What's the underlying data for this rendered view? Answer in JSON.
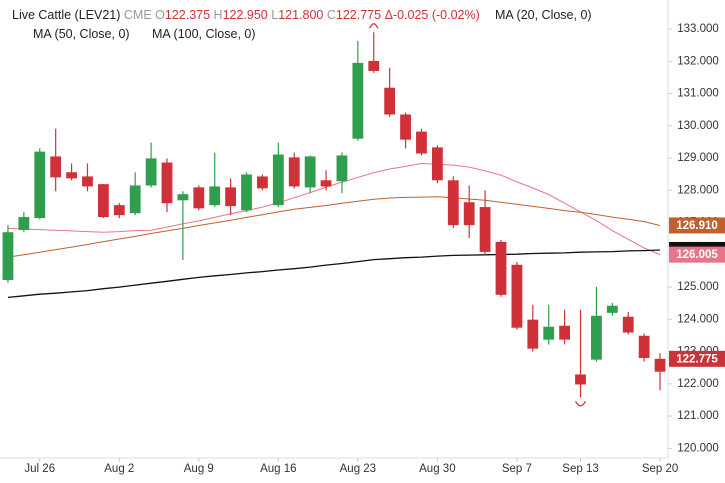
{
  "header": {
    "title": "Live Cattle (LEV21)",
    "exchange": "CME",
    "fields": [
      {
        "key": "O",
        "value": "122.375"
      },
      {
        "key": "H",
        "value": "122.950"
      },
      {
        "key": "L",
        "value": "121.800"
      },
      {
        "key": "C",
        "value": "122.775"
      }
    ],
    "change": "Δ-0.025 (-0.02%)"
  },
  "chart_data": {
    "type": "candlestick",
    "categories": [
      null,
      null,
      "Jul 26",
      null,
      null,
      null,
      null,
      "Aug 2",
      null,
      null,
      null,
      null,
      "Aug 9",
      null,
      null,
      null,
      null,
      "Aug 16",
      null,
      null,
      null,
      null,
      "Aug 23",
      null,
      null,
      null,
      null,
      "Aug 30",
      null,
      null,
      null,
      null,
      "Sep 7",
      null,
      null,
      null,
      "Sep 13",
      null,
      null,
      null,
      null,
      "Sep 20"
    ],
    "open": [
      125.22,
      126.77,
      127.14,
      129.05,
      128.56,
      128.43,
      128.19,
      127.54,
      127.29,
      128.15,
      128.86,
      127.69,
      128.09,
      127.54,
      128.09,
      127.38,
      128.43,
      127.54,
      129.02,
      128.09,
      128.31,
      128.28,
      129.6,
      132.01,
      131.18,
      130.35,
      129.82,
      129.33,
      128.31,
      127.63,
      127.48,
      126.4,
      125.69,
      123.99,
      123.37,
      123.8,
      122.29,
      122.75,
      124.2,
      124.08,
      123.49,
      122.375
    ],
    "high": [
      126.92,
      127.32,
      129.3,
      129.91,
      128.83,
      128.83,
      128.2,
      127.6,
      128.56,
      129.48,
      128.99,
      127.97,
      128.15,
      129.17,
      128.37,
      128.56,
      128.49,
      129.48,
      129.17,
      129.08,
      128.62,
      129.17,
      132.63,
      132.9,
      131.8,
      130.41,
      129.91,
      129.39,
      128.43,
      128.15,
      128.0,
      126.46,
      125.78,
      124.45,
      124.45,
      124.3,
      124.3,
      125.01,
      124.51,
      124.23,
      123.56,
      122.95
    ],
    "low": [
      125.13,
      126.7,
      127.1,
      127.97,
      128.31,
      127.97,
      127.14,
      127.14,
      127.23,
      128.09,
      127.32,
      125.84,
      127.38,
      127.48,
      127.23,
      127.32,
      128.0,
      127.48,
      128.06,
      127.91,
      128.0,
      127.91,
      129.54,
      131.64,
      130.28,
      129.3,
      129.08,
      128.22,
      126.83,
      126.52,
      125.99,
      124.7,
      123.68,
      123.0,
      123.22,
      123.22,
      121.58,
      122.69,
      124.11,
      123.53,
      122.69,
      121.8
    ],
    "close": [
      126.7,
      127.17,
      129.2,
      128.4,
      128.37,
      128.12,
      127.17,
      127.23,
      128.15,
      128.99,
      127.6,
      127.88,
      127.44,
      128.12,
      127.51,
      128.49,
      128.06,
      129.11,
      128.12,
      129.05,
      128.12,
      129.08,
      131.95,
      131.7,
      130.35,
      129.57,
      129.14,
      128.31,
      126.92,
      126.92,
      126.09,
      124.76,
      123.74,
      123.09,
      123.77,
      123.37,
      121.98,
      124.11,
      124.42,
      123.59,
      122.8,
      122.775
    ],
    "close_labels": [
      null,
      null,
      null,
      null,
      null,
      null,
      null,
      null,
      null,
      null,
      null,
      null,
      null,
      null,
      null,
      null,
      null,
      null,
      null,
      null,
      null,
      null,
      null,
      null,
      null,
      null,
      null,
      null,
      null,
      null,
      null,
      null,
      null,
      null,
      null,
      null,
      null,
      null,
      null,
      null,
      null,
      "122.775"
    ],
    "colors": [
      "#2f9e4f",
      "#2f9e4f",
      "#2f9e4f",
      "#d03138",
      "#d03138",
      "#d03138",
      "#d03138",
      "#d03138",
      "#2f9e4f",
      "#2f9e4f",
      "#d03138",
      "#2f9e4f",
      "#d03138",
      "#2f9e4f",
      "#d03138",
      "#2f9e4f",
      "#d03138",
      "#2f9e4f",
      "#d03138",
      "#2f9e4f",
      "#d03138",
      "#2f9e4f",
      "#2f9e4f",
      "#d03138",
      "#d03138",
      "#d03138",
      "#d03138",
      "#d03138",
      "#d03138",
      "#d03138",
      "#d03138",
      "#d03138",
      "#d03138",
      "#d03138",
      "#2f9e4f",
      "#d03138",
      "#d03138",
      "#2f9e4f",
      "#2f9e4f",
      "#d03138",
      "#d03138",
      "#d03138"
    ],
    "label_color": "#c9343a",
    "marker_color": "#d03138",
    "series": [
      {
        "name": "MA (20, Close, 0)",
        "color": "#e8768a",
        "values": [
          126.82,
          126.8,
          126.78,
          126.76,
          126.74,
          126.72,
          126.7,
          126.72,
          126.75,
          126.76,
          126.86,
          126.96,
          127.05,
          127.16,
          127.27,
          127.37,
          127.48,
          127.61,
          127.77,
          127.93,
          128.1,
          128.25,
          128.4,
          128.55,
          128.66,
          128.74,
          128.83,
          128.81,
          128.78,
          128.72,
          128.6,
          128.47,
          128.26,
          128.07,
          127.87,
          127.6,
          127.33,
          127.06,
          126.75,
          126.48,
          126.21,
          126.005
        ],
        "value_labels": [
          null,
          null,
          null,
          null,
          null,
          null,
          null,
          null,
          null,
          null,
          null,
          null,
          null,
          null,
          null,
          null,
          null,
          null,
          null,
          null,
          null,
          null,
          null,
          null,
          null,
          null,
          null,
          null,
          null,
          null,
          null,
          null,
          null,
          null,
          null,
          null,
          null,
          null,
          null,
          null,
          null,
          "126.005"
        ]
      },
      {
        "name": "MA (50, Close, 0)",
        "color": "#c0602e",
        "values": [
          125.93,
          126.0,
          126.08,
          126.16,
          126.24,
          126.32,
          126.41,
          126.49,
          126.57,
          126.66,
          126.74,
          126.82,
          126.91,
          126.99,
          127.07,
          127.16,
          127.24,
          127.33,
          127.41,
          127.47,
          127.53,
          127.6,
          127.66,
          127.72,
          127.76,
          127.78,
          127.79,
          127.8,
          127.77,
          127.73,
          127.69,
          127.63,
          127.57,
          127.5,
          127.44,
          127.37,
          127.32,
          127.25,
          127.17,
          127.1,
          127.03,
          126.91
        ],
        "value_labels": [
          null,
          null,
          null,
          null,
          null,
          null,
          null,
          null,
          null,
          null,
          null,
          null,
          null,
          null,
          null,
          null,
          null,
          null,
          null,
          null,
          null,
          null,
          null,
          null,
          null,
          null,
          null,
          null,
          null,
          null,
          null,
          null,
          null,
          null,
          null,
          null,
          null,
          null,
          null,
          null,
          null,
          "126.910"
        ]
      },
      {
        "name": "MA (100, Close, 0)",
        "color": "#111111",
        "values": [
          124.68,
          124.73,
          124.78,
          124.81,
          124.85,
          124.89,
          124.95,
          125.0,
          125.06,
          125.12,
          125.18,
          125.24,
          125.3,
          125.35,
          125.39,
          125.44,
          125.48,
          125.53,
          125.57,
          125.62,
          125.68,
          125.73,
          125.79,
          125.85,
          125.88,
          125.91,
          125.93,
          125.96,
          125.98,
          125.99,
          126.0,
          126.01,
          126.02,
          126.04,
          126.05,
          126.06,
          126.08,
          126.09,
          126.1,
          126.12,
          126.13,
          126.15
        ]
      }
    ],
    "ylim": [
      119.7,
      133.9
    ],
    "yticks": [
      {
        "value": 120,
        "label": "120.000"
      },
      {
        "value": 121,
        "label": "121.000"
      },
      {
        "value": 122,
        "label": "122.000"
      },
      {
        "value": 123,
        "label": "123.000"
      },
      {
        "value": 124,
        "label": "124.000"
      },
      {
        "value": 125,
        "label": "125.000"
      },
      {
        "value": 126,
        "label": "126.000"
      },
      {
        "value": 127,
        "label": "127.000"
      },
      {
        "value": 128,
        "label": "128.000"
      },
      {
        "value": 129,
        "label": "129.000"
      },
      {
        "value": 130,
        "label": "130.000"
      },
      {
        "value": 131,
        "label": "131.000"
      },
      {
        "value": 132,
        "label": "132.000"
      },
      {
        "value": 133,
        "label": "133.000"
      }
    ]
  }
}
